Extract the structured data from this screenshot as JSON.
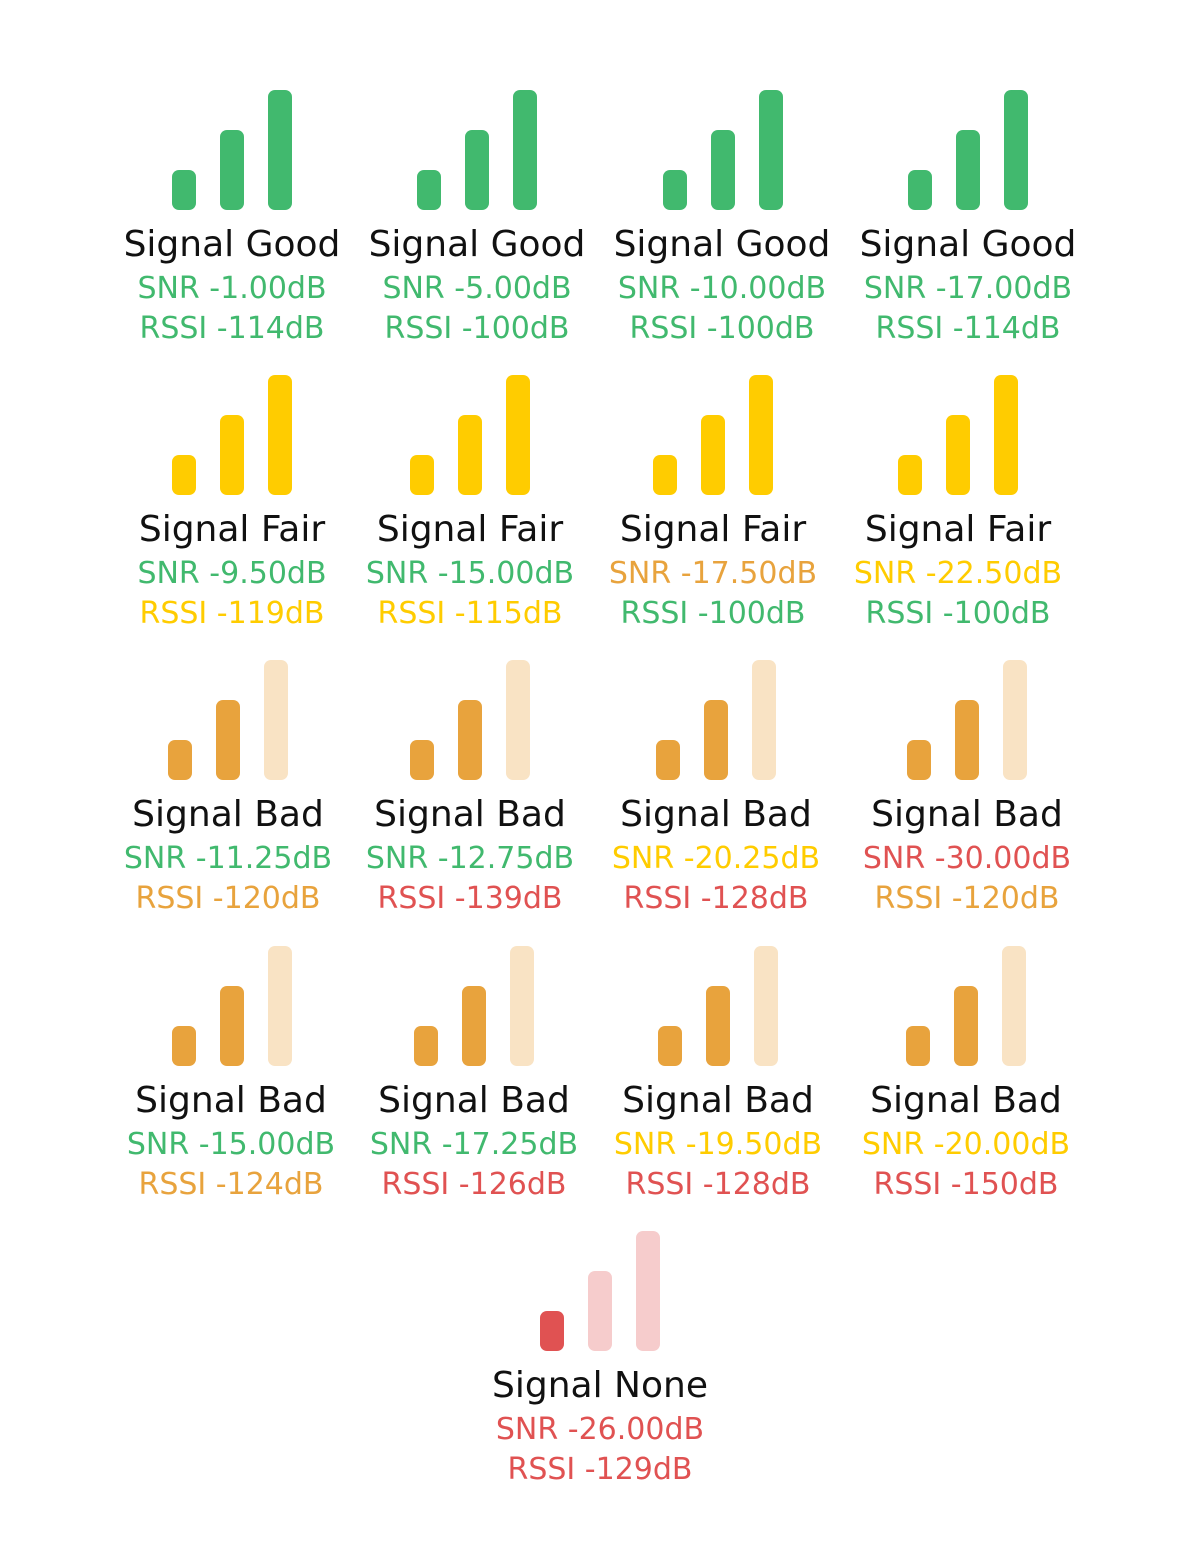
{
  "colors": {
    "green": "#41b96e",
    "yellow": "#ffcc00",
    "orange": "#e8a33d",
    "red": "#e05252",
    "orange_light": "#f9e3c4",
    "red_light": "#f6cccc"
  },
  "indicators": [
    {
      "title": "Signal Good",
      "snr": "SNR -1.00dB",
      "rssi": "RSSI -114dB",
      "snr_color": "green",
      "rssi_color": "green",
      "bar_colors": [
        "green",
        "green",
        "green"
      ]
    },
    {
      "title": "Signal Good",
      "snr": "SNR -5.00dB",
      "rssi": "RSSI -100dB",
      "snr_color": "green",
      "rssi_color": "green",
      "bar_colors": [
        "green",
        "green",
        "green"
      ]
    },
    {
      "title": "Signal Good",
      "snr": "SNR -10.00dB",
      "rssi": "RSSI -100dB",
      "snr_color": "green",
      "rssi_color": "green",
      "bar_colors": [
        "green",
        "green",
        "green"
      ]
    },
    {
      "title": "Signal Good",
      "snr": "SNR -17.00dB",
      "rssi": "RSSI -114dB",
      "snr_color": "green",
      "rssi_color": "green",
      "bar_colors": [
        "green",
        "green",
        "green"
      ]
    },
    {
      "title": "Signal Fair",
      "snr": "SNR -9.50dB",
      "rssi": "RSSI -119dB",
      "snr_color": "green",
      "rssi_color": "yellow",
      "bar_colors": [
        "yellow",
        "yellow",
        "yellow"
      ]
    },
    {
      "title": "Signal Fair",
      "snr": "SNR -15.00dB",
      "rssi": "RSSI -115dB",
      "snr_color": "green",
      "rssi_color": "yellow",
      "bar_colors": [
        "yellow",
        "yellow",
        "yellow"
      ]
    },
    {
      "title": "Signal Fair",
      "snr": "SNR -17.50dB",
      "rssi": "RSSI -100dB",
      "snr_color": "orange",
      "rssi_color": "green",
      "bar_colors": [
        "yellow",
        "yellow",
        "yellow"
      ]
    },
    {
      "title": "Signal Fair",
      "snr": "SNR -22.50dB",
      "rssi": "RSSI -100dB",
      "snr_color": "yellow",
      "rssi_color": "green",
      "bar_colors": [
        "yellow",
        "yellow",
        "yellow"
      ]
    },
    {
      "title": "Signal Bad",
      "snr": "SNR -11.25dB",
      "rssi": "RSSI -120dB",
      "snr_color": "green",
      "rssi_color": "orange",
      "bar_colors": [
        "orange",
        "orange",
        "orange_light"
      ]
    },
    {
      "title": "Signal Bad",
      "snr": "SNR -12.75dB",
      "rssi": "RSSI -139dB",
      "snr_color": "green",
      "rssi_color": "red",
      "bar_colors": [
        "orange",
        "orange",
        "orange_light"
      ]
    },
    {
      "title": "Signal Bad",
      "snr": "SNR -20.25dB",
      "rssi": "RSSI -128dB",
      "snr_color": "yellow",
      "rssi_color": "red",
      "bar_colors": [
        "orange",
        "orange",
        "orange_light"
      ]
    },
    {
      "title": "Signal Bad",
      "snr": "SNR -30.00dB",
      "rssi": "RSSI -120dB",
      "snr_color": "red",
      "rssi_color": "orange",
      "bar_colors": [
        "orange",
        "orange",
        "orange_light"
      ]
    },
    {
      "title": "Signal Bad",
      "snr": "SNR -15.00dB",
      "rssi": "RSSI -124dB",
      "snr_color": "green",
      "rssi_color": "orange",
      "bar_colors": [
        "orange",
        "orange",
        "orange_light"
      ]
    },
    {
      "title": "Signal Bad",
      "snr": "SNR -17.25dB",
      "rssi": "RSSI -126dB",
      "snr_color": "green",
      "rssi_color": "red",
      "bar_colors": [
        "orange",
        "orange",
        "orange_light"
      ]
    },
    {
      "title": "Signal Bad",
      "snr": "SNR -19.50dB",
      "rssi": "RSSI -128dB",
      "snr_color": "yellow",
      "rssi_color": "red",
      "bar_colors": [
        "orange",
        "orange",
        "orange_light"
      ]
    },
    {
      "title": "Signal Bad",
      "snr": "SNR -20.00dB",
      "rssi": "RSSI -150dB",
      "snr_color": "yellow",
      "rssi_color": "red",
      "bar_colors": [
        "orange",
        "orange",
        "orange_light"
      ]
    },
    {
      "title": "Signal None",
      "snr": "SNR -26.00dB",
      "rssi": "RSSI -129dB",
      "snr_color": "red",
      "rssi_color": "red",
      "bar_colors": [
        "red",
        "red_light",
        "red_light"
      ]
    }
  ]
}
